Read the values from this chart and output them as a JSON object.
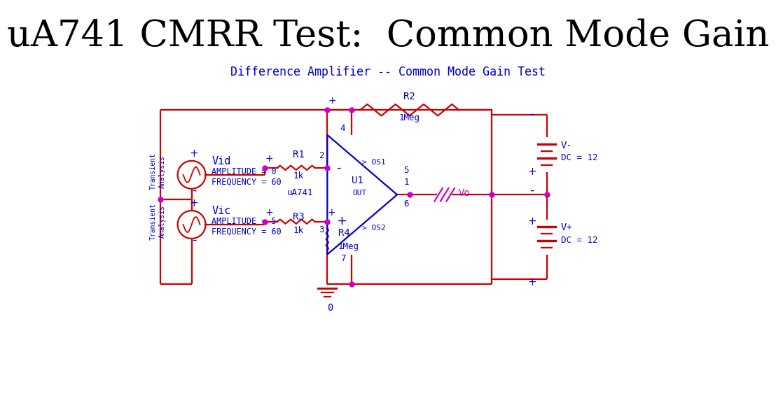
{
  "title": "uA741 CMRR Test:  Common Mode Gain",
  "subtitle": "Difference Amplifier -- Common Mode Gain Test",
  "bg_color": "#ffffff",
  "title_color": "#000000",
  "blue": "#0000cc",
  "wire": "#cc0000",
  "mag": "#cc00cc",
  "lw": 1.6
}
